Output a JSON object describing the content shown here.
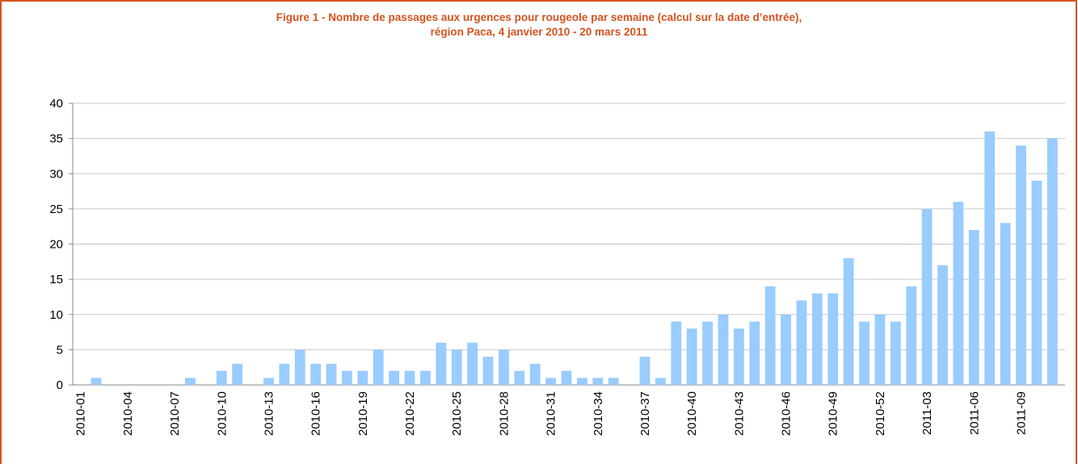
{
  "chart_data": {
    "type": "bar",
    "title": "Figure 1 - Nombre de passages aux urgences pour rougeole par semaine (calcul sur la date d’entrée),",
    "subtitle": "région Paca, 4 janvier 2010 - 20 mars 2011",
    "categories": [
      "2010-01",
      null,
      null,
      "2010-04",
      null,
      null,
      "2010-07",
      null,
      null,
      "2010-10",
      null,
      null,
      "2010-13",
      null,
      null,
      "2010-16",
      null,
      null,
      "2010-19",
      null,
      null,
      "2010-22",
      null,
      null,
      "2010-25",
      null,
      null,
      "2010-28",
      null,
      null,
      "2010-31",
      null,
      null,
      "2010-34",
      null,
      null,
      "2010-37",
      null,
      null,
      "2010-40",
      null,
      null,
      "2010-43",
      null,
      null,
      "2010-46",
      null,
      null,
      "2010-49",
      null,
      null,
      "2010-52",
      null,
      null,
      "2011-03",
      null,
      null,
      "2011-06",
      null,
      null,
      "2011-09",
      null,
      null
    ],
    "values": [
      0,
      1,
      0,
      0,
      0,
      0,
      0,
      1,
      0,
      2,
      3,
      0,
      1,
      3,
      5,
      3,
      3,
      2,
      2,
      5,
      2,
      2,
      2,
      6,
      5,
      6,
      4,
      5,
      2,
      3,
      1,
      2,
      1,
      1,
      1,
      0,
      4,
      1,
      9,
      8,
      9,
      10,
      8,
      9,
      14,
      10,
      12,
      13,
      13,
      18,
      9,
      10,
      9,
      14,
      25,
      17,
      26,
      22,
      36,
      23,
      34,
      29,
      35
    ],
    "color": "#99ccff",
    "ylim": [
      0,
      40
    ],
    "yticks": [
      0,
      5,
      10,
      15,
      20,
      25,
      30,
      35,
      40
    ],
    "grid": true
  }
}
